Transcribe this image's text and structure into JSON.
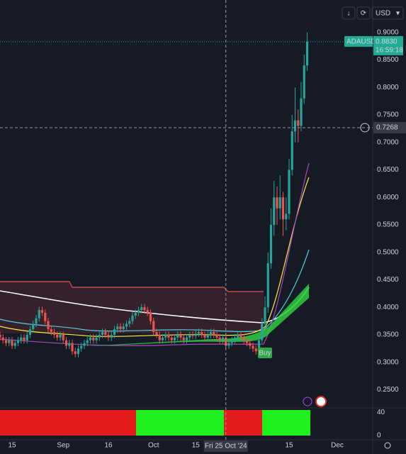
{
  "chart_data": {
    "type": "candlestick",
    "symbol": "ADAUSD",
    "currency": "USD",
    "countdown": "16:59:18",
    "signal_label": "Buy",
    "signal_x": "2024-11-07",
    "last_price": {
      "value": 0.883,
      "label": "0.8830"
    },
    "crosshair": {
      "x": "2024-10-25",
      "x_label": "Fri 25 Oct '24",
      "y": 0.7268
    },
    "colors": {
      "up": "#26a69a",
      "down": "#ef5350",
      "last": "#22ab94"
    },
    "ylim": [
      0.217,
      0.959
    ],
    "yticks": [
      {
        "value": 0.9,
        "label": "0.9000"
      },
      {
        "value": 0.85,
        "label": "0.8500"
      },
      {
        "value": 0.8,
        "label": "0.8000"
      },
      {
        "value": 0.75,
        "label": "0.7500"
      },
      {
        "value": 0.7,
        "label": "0.7000"
      },
      {
        "value": 0.65,
        "label": "0.6500"
      },
      {
        "value": 0.6,
        "label": "0.6000"
      },
      {
        "value": 0.55,
        "label": "0.5500"
      },
      {
        "value": 0.5,
        "label": "0.5000"
      },
      {
        "value": 0.45,
        "label": "0.4500"
      },
      {
        "value": 0.4,
        "label": "0.4000"
      },
      {
        "value": 0.35,
        "label": "0.3500"
      },
      {
        "value": 0.3,
        "label": "0.3000"
      },
      {
        "value": 0.25,
        "label": "0.2500"
      }
    ],
    "xticks": [
      {
        "value": "2024-08-15",
        "label": "15"
      },
      {
        "value": "2024-09-01",
        "label": "Sep"
      },
      {
        "value": "2024-09-16",
        "label": "16"
      },
      {
        "value": "2024-10-01",
        "label": "Oct"
      },
      {
        "value": "2024-10-15",
        "label": "15"
      },
      {
        "value": "2024-11-15",
        "label": "15"
      },
      {
        "value": "2024-12-01",
        "label": "Dec"
      }
    ],
    "oscillator": {
      "ylim": [
        0,
        44
      ],
      "yticks": [
        40,
        0
      ]
    },
    "x": [
      "2024-08-11",
      "2024-08-12",
      "2024-08-13",
      "2024-08-14",
      "2024-08-15",
      "2024-08-16",
      "2024-08-17",
      "2024-08-18",
      "2024-08-19",
      "2024-08-20",
      "2024-08-21",
      "2024-08-22",
      "2024-08-23",
      "2024-08-24",
      "2024-08-25",
      "2024-08-26",
      "2024-08-27",
      "2024-08-28",
      "2024-08-29",
      "2024-08-30",
      "2024-08-31",
      "2024-09-01",
      "2024-09-02",
      "2024-09-03",
      "2024-09-04",
      "2024-09-05",
      "2024-09-06",
      "2024-09-07",
      "2024-09-08",
      "2024-09-09",
      "2024-09-10",
      "2024-09-11",
      "2024-09-12",
      "2024-09-13",
      "2024-09-14",
      "2024-09-15",
      "2024-09-16",
      "2024-09-17",
      "2024-09-18",
      "2024-09-19",
      "2024-09-20",
      "2024-09-21",
      "2024-09-22",
      "2024-09-23",
      "2024-09-24",
      "2024-09-25",
      "2024-09-26",
      "2024-09-27",
      "2024-09-28",
      "2024-09-29",
      "2024-09-30",
      "2024-10-01",
      "2024-10-02",
      "2024-10-03",
      "2024-10-04",
      "2024-10-05",
      "2024-10-06",
      "2024-10-07",
      "2024-10-08",
      "2024-10-09",
      "2024-10-10",
      "2024-10-11",
      "2024-10-12",
      "2024-10-13",
      "2024-10-14",
      "2024-10-15",
      "2024-10-16",
      "2024-10-17",
      "2024-10-18",
      "2024-10-19",
      "2024-10-20",
      "2024-10-21",
      "2024-10-22",
      "2024-10-23",
      "2024-10-24",
      "2024-10-25",
      "2024-10-26",
      "2024-10-27",
      "2024-10-28",
      "2024-10-29",
      "2024-10-30",
      "2024-10-31",
      "2024-11-01",
      "2024-11-02",
      "2024-11-03",
      "2024-11-04",
      "2024-11-05",
      "2024-11-06",
      "2024-11-07",
      "2024-11-08",
      "2024-11-09",
      "2024-11-10",
      "2024-11-11",
      "2024-11-12",
      "2024-11-13",
      "2024-11-14",
      "2024-11-15",
      "2024-11-16",
      "2024-11-17",
      "2024-11-18",
      "2024-11-19",
      "2024-11-20",
      "2024-11-21"
    ],
    "open": [
      0.35,
      0.345,
      0.34,
      0.335,
      0.34,
      0.33,
      0.335,
      0.34,
      0.345,
      0.34,
      0.35,
      0.36,
      0.37,
      0.38,
      0.395,
      0.39,
      0.375,
      0.36,
      0.355,
      0.35,
      0.345,
      0.35,
      0.34,
      0.33,
      0.335,
      0.32,
      0.315,
      0.325,
      0.33,
      0.335,
      0.34,
      0.345,
      0.34,
      0.345,
      0.35,
      0.355,
      0.35,
      0.345,
      0.35,
      0.36,
      0.365,
      0.36,
      0.365,
      0.37,
      0.375,
      0.385,
      0.39,
      0.395,
      0.4,
      0.395,
      0.39,
      0.375,
      0.355,
      0.35,
      0.34,
      0.345,
      0.35,
      0.345,
      0.34,
      0.345,
      0.35,
      0.345,
      0.34,
      0.345,
      0.35,
      0.348,
      0.352,
      0.355,
      0.35,
      0.345,
      0.35,
      0.355,
      0.35,
      0.345,
      0.34,
      0.345,
      0.33,
      0.335,
      0.34,
      0.345,
      0.35,
      0.345,
      0.34,
      0.335,
      0.33,
      0.325,
      0.32,
      0.34,
      0.37,
      0.4,
      0.48,
      0.55,
      0.6,
      0.58,
      0.6,
      0.56,
      0.57,
      0.65,
      0.72,
      0.74,
      0.73,
      0.78,
      0.84
    ],
    "high": [
      0.356,
      0.351,
      0.346,
      0.346,
      0.346,
      0.341,
      0.346,
      0.351,
      0.351,
      0.356,
      0.366,
      0.376,
      0.386,
      0.401,
      0.401,
      0.396,
      0.381,
      0.366,
      0.361,
      0.356,
      0.356,
      0.356,
      0.346,
      0.341,
      0.341,
      0.326,
      0.331,
      0.336,
      0.341,
      0.346,
      0.351,
      0.351,
      0.351,
      0.356,
      0.361,
      0.361,
      0.356,
      0.356,
      0.366,
      0.371,
      0.371,
      0.371,
      0.376,
      0.381,
      0.391,
      0.396,
      0.401,
      0.406,
      0.406,
      0.401,
      0.396,
      0.381,
      0.361,
      0.356,
      0.351,
      0.356,
      0.356,
      0.351,
      0.351,
      0.356,
      0.356,
      0.351,
      0.351,
      0.356,
      0.356,
      0.358,
      0.361,
      0.361,
      0.356,
      0.356,
      0.361,
      0.361,
      0.356,
      0.351,
      0.351,
      0.351,
      0.341,
      0.346,
      0.351,
      0.356,
      0.356,
      0.351,
      0.346,
      0.341,
      0.336,
      0.331,
      0.346,
      0.38,
      0.42,
      0.5,
      0.58,
      0.63,
      0.62,
      0.64,
      0.61,
      0.6,
      0.67,
      0.75,
      0.8,
      0.76,
      0.81,
      0.86,
      0.9
    ],
    "low": [
      0.339,
      0.334,
      0.329,
      0.329,
      0.324,
      0.324,
      0.329,
      0.334,
      0.334,
      0.334,
      0.344,
      0.354,
      0.364,
      0.374,
      0.384,
      0.369,
      0.354,
      0.349,
      0.344,
      0.339,
      0.339,
      0.334,
      0.324,
      0.324,
      0.314,
      0.309,
      0.309,
      0.319,
      0.324,
      0.329,
      0.334,
      0.334,
      0.334,
      0.339,
      0.344,
      0.344,
      0.339,
      0.339,
      0.344,
      0.354,
      0.354,
      0.354,
      0.359,
      0.364,
      0.369,
      0.379,
      0.384,
      0.389,
      0.389,
      0.384,
      0.369,
      0.349,
      0.344,
      0.334,
      0.334,
      0.339,
      0.339,
      0.334,
      0.334,
      0.339,
      0.339,
      0.334,
      0.334,
      0.339,
      0.342,
      0.342,
      0.346,
      0.344,
      0.339,
      0.339,
      0.344,
      0.344,
      0.339,
      0.334,
      0.334,
      0.324,
      0.324,
      0.329,
      0.334,
      0.339,
      0.339,
      0.334,
      0.329,
      0.324,
      0.319,
      0.314,
      0.314,
      0.335,
      0.365,
      0.39,
      0.47,
      0.53,
      0.55,
      0.56,
      0.53,
      0.54,
      0.56,
      0.64,
      0.7,
      0.7,
      0.72,
      0.77,
      0.83
    ],
    "close": [
      0.345,
      0.34,
      0.335,
      0.34,
      0.33,
      0.335,
      0.34,
      0.345,
      0.34,
      0.35,
      0.36,
      0.37,
      0.38,
      0.395,
      0.39,
      0.375,
      0.36,
      0.355,
      0.35,
      0.345,
      0.35,
      0.34,
      0.33,
      0.335,
      0.32,
      0.315,
      0.325,
      0.33,
      0.335,
      0.34,
      0.345,
      0.34,
      0.345,
      0.35,
      0.355,
      0.35,
      0.345,
      0.35,
      0.36,
      0.365,
      0.36,
      0.365,
      0.37,
      0.375,
      0.385,
      0.39,
      0.395,
      0.4,
      0.395,
      0.39,
      0.375,
      0.355,
      0.35,
      0.34,
      0.345,
      0.35,
      0.345,
      0.34,
      0.345,
      0.35,
      0.345,
      0.34,
      0.345,
      0.35,
      0.348,
      0.352,
      0.355,
      0.35,
      0.345,
      0.35,
      0.355,
      0.35,
      0.345,
      0.34,
      0.345,
      0.33,
      0.335,
      0.34,
      0.345,
      0.35,
      0.345,
      0.34,
      0.335,
      0.33,
      0.325,
      0.32,
      0.34,
      0.37,
      0.4,
      0.48,
      0.55,
      0.6,
      0.58,
      0.6,
      0.56,
      0.57,
      0.65,
      0.72,
      0.74,
      0.73,
      0.78,
      0.84,
      0.883
    ]
  }
}
